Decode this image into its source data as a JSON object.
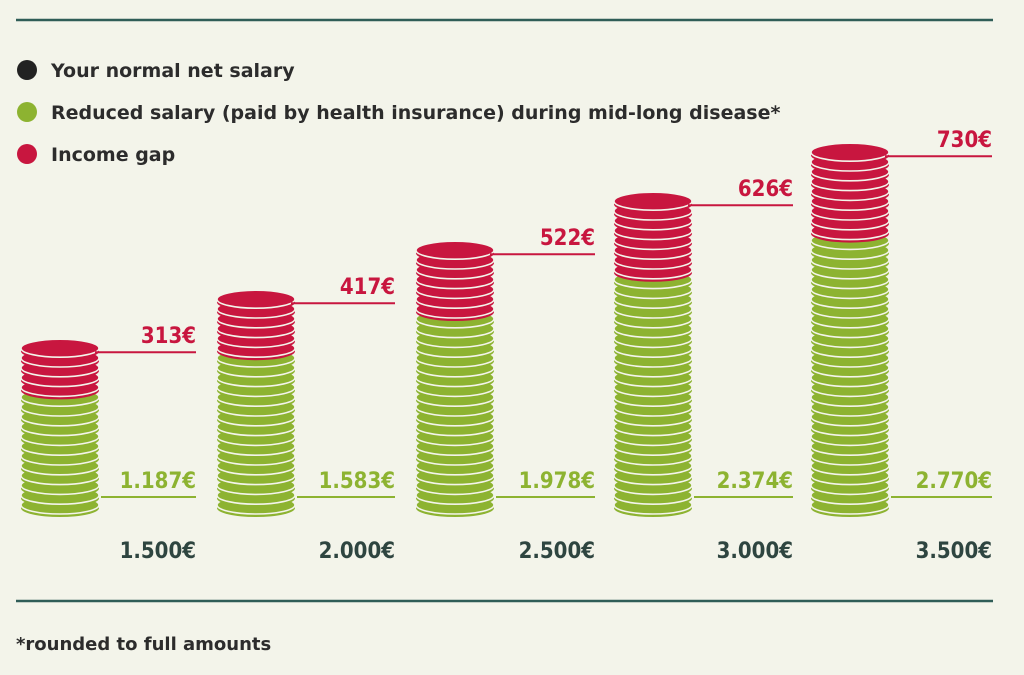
{
  "colors": {
    "background": "#f3f4ea",
    "rule": "#2f5d57",
    "normal": "#222222",
    "reduced": "#8db331",
    "gap": "#c8163f",
    "total_text": "#2e4540"
  },
  "legend": [
    {
      "key": "normal",
      "label": "Your normal net salary"
    },
    {
      "key": "reduced",
      "label": "Reduced salary (paid by health insurance) during mid-long disease*"
    },
    {
      "key": "gap",
      "label": "Income gap"
    }
  ],
  "footnote": "*rounded to full amounts",
  "chart_data": {
    "type": "bar",
    "stacked": true,
    "categories": [
      "1.500€",
      "2.000€",
      "2.500€",
      "3.000€",
      "3.500€"
    ],
    "series": [
      {
        "name": "Reduced salary (paid by health insurance) during mid-long disease*",
        "values": [
          1187,
          1583,
          1978,
          2374,
          2770
        ],
        "labels": [
          "1.187€",
          "1.583€",
          "1.978€",
          "2.374€",
          "2.770€"
        ]
      },
      {
        "name": "Income gap",
        "values": [
          313,
          417,
          522,
          626,
          730
        ],
        "labels": [
          "313€",
          "417€",
          "522€",
          "626€",
          "730€"
        ]
      }
    ],
    "totals": [
      1500,
      2000,
      2500,
      3000,
      3500
    ],
    "title": "",
    "xlabel": "",
    "ylabel": ""
  }
}
